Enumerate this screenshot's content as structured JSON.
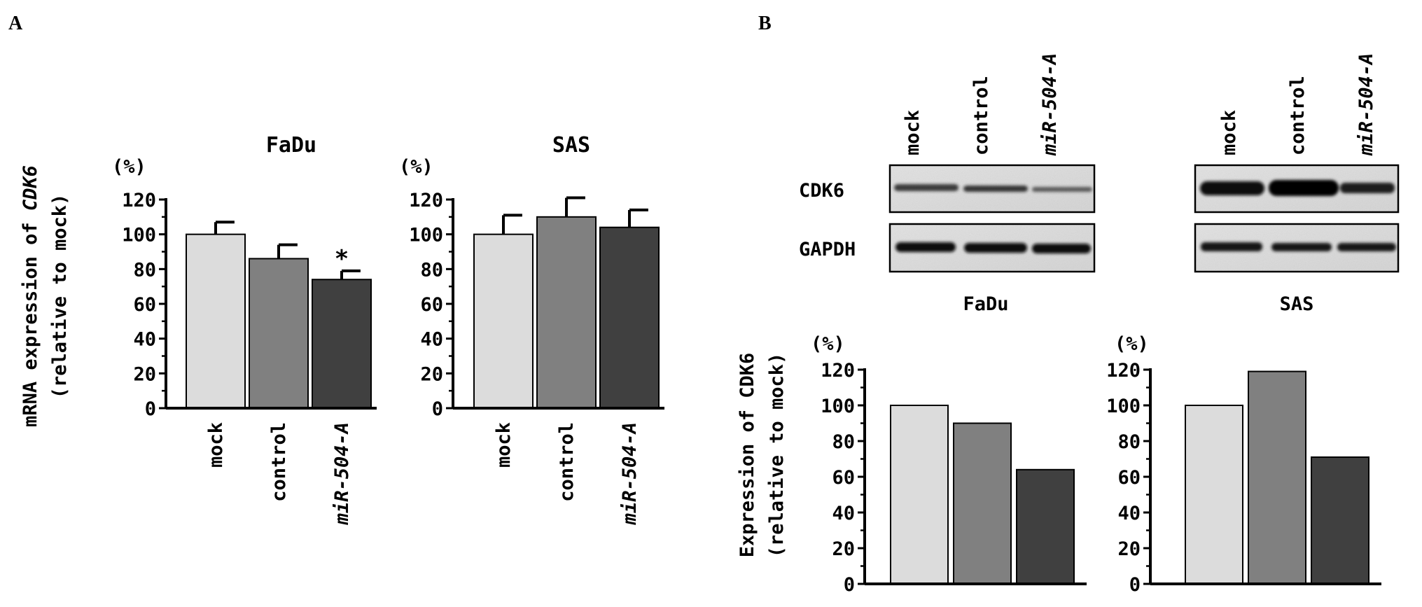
{
  "panels": {
    "A": "A",
    "B": "B"
  },
  "panelA": {
    "ylabel_line1_prefix": "mRNA expression of ",
    "ylabel_line1_gene": "CDK6",
    "ylabel_line2": "(relative to mock)"
  },
  "panelB": {
    "ylabel_line1": "Expression of CDK6",
    "ylabel_line2": "(relative to mock)",
    "blot_fadu": {
      "lanes": [
        "mock",
        "control",
        "miR-504-A"
      ],
      "rows": [
        "CDK6",
        "GAPDH"
      ],
      "caption": "FaDu"
    },
    "blot_sas": {
      "lanes": [
        "mock",
        "control",
        "miR-504-A"
      ],
      "caption": "SAS"
    }
  },
  "colors": {
    "mock": "#dcdcdc",
    "control": "#808080",
    "miR-504-A": "#404040"
  },
  "chart_data": [
    {
      "id": "A-FaDu",
      "type": "bar",
      "title": "FaDu",
      "unit": "(%)",
      "categories": [
        "mock",
        "control",
        "miR-504-A"
      ],
      "values": [
        100,
        86,
        74
      ],
      "errors": [
        7,
        8,
        5
      ],
      "significance": [
        "",
        "",
        "*"
      ],
      "ylim": [
        0,
        120
      ],
      "yticks": [
        0,
        20,
        40,
        60,
        80,
        100,
        120
      ],
      "grid": false
    },
    {
      "id": "A-SAS",
      "type": "bar",
      "title": "SAS",
      "unit": "(%)",
      "categories": [
        "mock",
        "control",
        "miR-504-A"
      ],
      "values": [
        100,
        110,
        104
      ],
      "errors": [
        11,
        11,
        10
      ],
      "significance": [
        "",
        "",
        ""
      ],
      "ylim": [
        0,
        120
      ],
      "yticks": [
        0,
        20,
        40,
        60,
        80,
        100,
        120
      ],
      "grid": false
    },
    {
      "id": "B-FaDu",
      "type": "bar",
      "title": "",
      "unit": "(%)",
      "categories": [
        "mock",
        "control",
        "miR-504-A"
      ],
      "values": [
        100,
        90,
        64
      ],
      "ylim": [
        0,
        120
      ],
      "yticks": [
        0,
        20,
        40,
        60,
        80,
        100,
        120
      ],
      "grid": false
    },
    {
      "id": "B-SAS",
      "type": "bar",
      "title": "",
      "unit": "(%)",
      "categories": [
        "mock",
        "control",
        "miR-504-A"
      ],
      "values": [
        100,
        119,
        71
      ],
      "ylim": [
        0,
        120
      ],
      "yticks": [
        0,
        20,
        40,
        60,
        80,
        100,
        120
      ],
      "grid": false
    }
  ]
}
